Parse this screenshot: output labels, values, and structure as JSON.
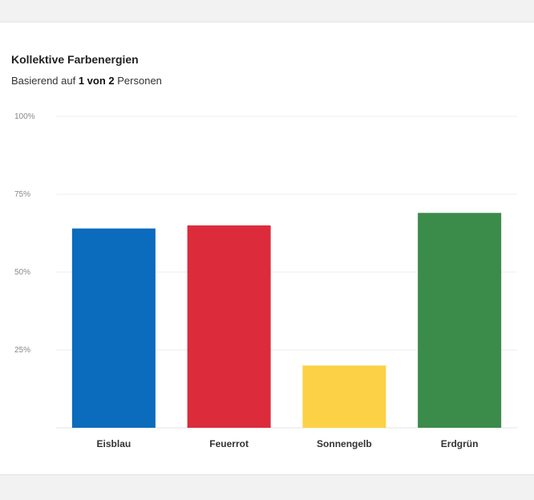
{
  "card": {
    "title": "Kollektive Farbenergien",
    "subtitle_prefix": "Basierend auf ",
    "subtitle_bold": "1 von 2",
    "subtitle_suffix": " Personen"
  },
  "chart_data": {
    "type": "bar",
    "categories": [
      "Eisblau",
      "Feuerrot",
      "Sonnengelb",
      "Erdgrün"
    ],
    "values": [
      64,
      65,
      20,
      69
    ],
    "colors": [
      "#0b6bbd",
      "#dc2b3b",
      "#fdd146",
      "#3b8b4b"
    ],
    "ylim": [
      0,
      100
    ],
    "yticks": [
      25,
      50,
      75,
      100
    ],
    "ytick_labels": [
      "25%",
      "50%",
      "75%",
      "100%"
    ],
    "grid": true,
    "title": "Kollektive Farbenergien",
    "xlabel": "",
    "ylabel": ""
  }
}
